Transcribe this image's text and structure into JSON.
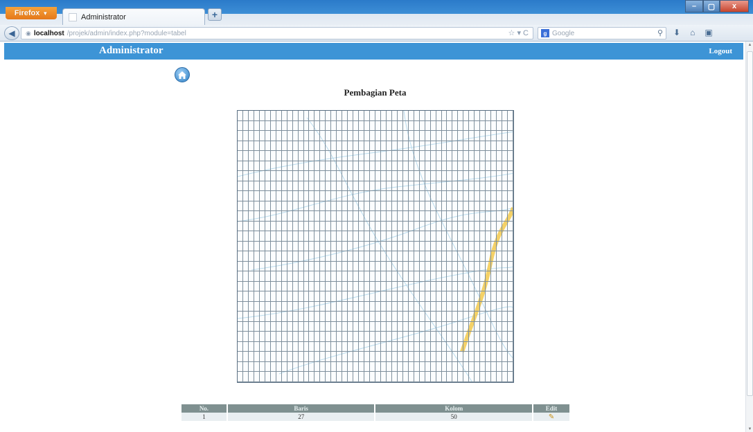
{
  "browser": {
    "menu_button": "Firefox",
    "tab_title": "Administrator",
    "new_tab": "+",
    "url_host": "localhost",
    "url_path": "/projek/admin/index.php?module=tabel",
    "search_placeholder": "Google",
    "window_controls": {
      "minimize": "–",
      "maximize": "▢",
      "close": "x"
    }
  },
  "header": {
    "title": "Administrator",
    "logout": "Logout"
  },
  "icons": {
    "home": "home-icon",
    "edit": "edit-icon"
  },
  "page": {
    "title": "Pembagian Peta"
  },
  "map": {
    "rows": 27,
    "columns": 50,
    "line_color": "#7e8f9c",
    "highlight_color": "#f2c94c"
  },
  "table": {
    "headers": [
      "No.",
      "Baris",
      "Kolom",
      "Edit"
    ],
    "rows": [
      {
        "no": "1",
        "baris": "27",
        "kolom": "50"
      }
    ]
  },
  "colors": {
    "header_bg": "#3d94d6",
    "table_header_bg": "#7f9090"
  }
}
